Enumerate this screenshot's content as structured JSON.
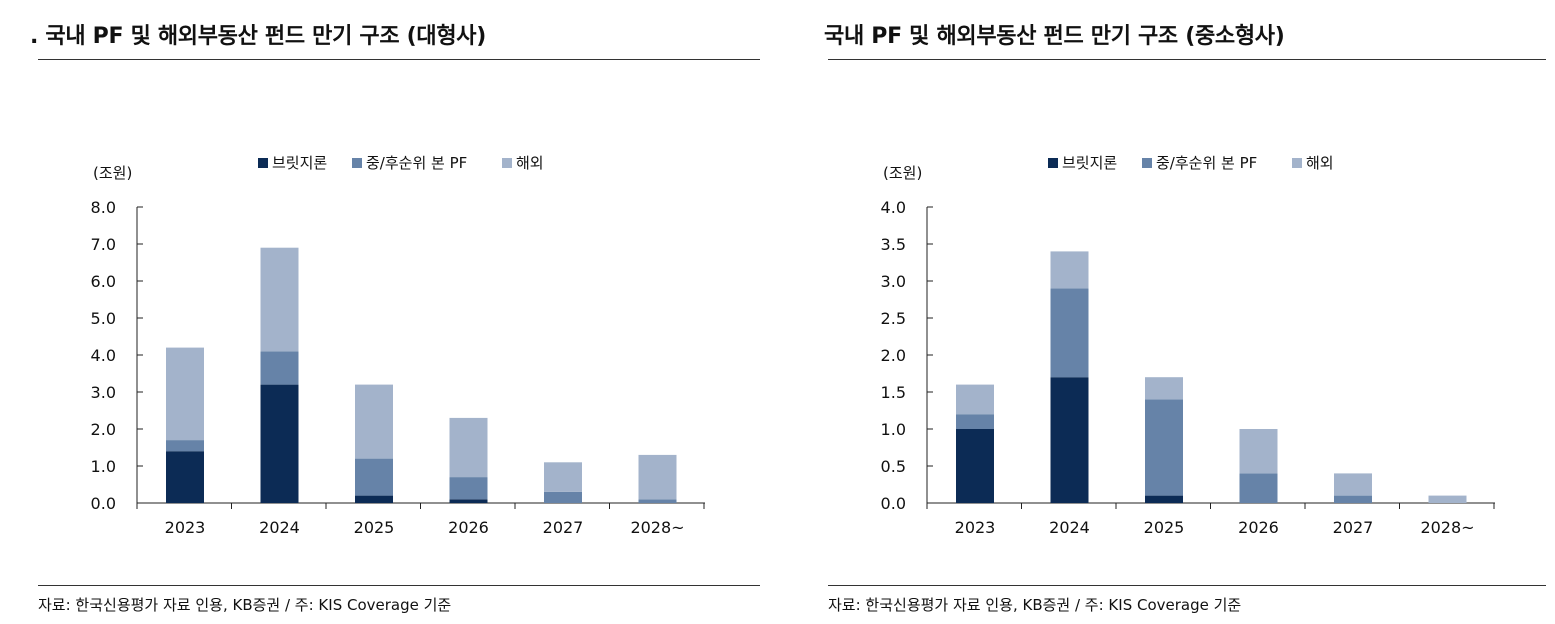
{
  "colors": {
    "bridge": "#0c2b55",
    "mezz": "#6683a8",
    "overseas": "#a3b3cb"
  },
  "panels": [
    {
      "title": ". 국내 PF 및 해외부동산 펀드 만기 구조 (대형사)",
      "source": "자료: 한국신용평가 자료 인용, KB증권 / 주: KIS Coverage 기준"
    },
    {
      "title": "국내 PF 및 해외부동산 펀드 만기 구조 (중소형사)",
      "source": "자료: 한국신용평가 자료 인용, KB증권 / 주: KIS Coverage 기준"
    }
  ],
  "chart_data": [
    {
      "type": "bar",
      "stacked": true,
      "unit_label": "(조원)",
      "categories": [
        "2023",
        "2024",
        "2025",
        "2026",
        "2027",
        "2028~"
      ],
      "series": [
        {
          "name": "브릿지론",
          "values": [
            1.4,
            3.2,
            0.2,
            0.1,
            0.0,
            0.0
          ]
        },
        {
          "name": "중/후순위 본 PF",
          "values": [
            0.3,
            0.9,
            1.0,
            0.6,
            0.3,
            0.1
          ]
        },
        {
          "name": "해외",
          "values": [
            2.5,
            2.8,
            2.0,
            1.6,
            0.8,
            1.2
          ]
        }
      ],
      "ylim": [
        0,
        8
      ],
      "yticks": [
        "0.0",
        "1.0",
        "2.0",
        "3.0",
        "4.0",
        "5.0",
        "6.0",
        "7.0",
        "8.0"
      ],
      "legend": "top",
      "grid": false
    },
    {
      "type": "bar",
      "stacked": true,
      "unit_label": "(조원)",
      "categories": [
        "2023",
        "2024",
        "2025",
        "2026",
        "2027",
        "2028~"
      ],
      "series": [
        {
          "name": "브릿지론",
          "values": [
            1.0,
            1.7,
            0.1,
            0.0,
            0.0,
            0.0
          ]
        },
        {
          "name": "중/후순위 본 PF",
          "values": [
            0.2,
            1.2,
            1.3,
            0.4,
            0.1,
            0.0
          ]
        },
        {
          "name": "해외",
          "values": [
            0.4,
            0.5,
            0.3,
            0.6,
            0.3,
            0.1
          ]
        }
      ],
      "ylim": [
        0,
        4
      ],
      "yticks": [
        "0.0",
        "0.5",
        "1.0",
        "1.5",
        "2.0",
        "2.5",
        "3.0",
        "3.5",
        "4.0"
      ],
      "legend": "top",
      "grid": false
    }
  ]
}
